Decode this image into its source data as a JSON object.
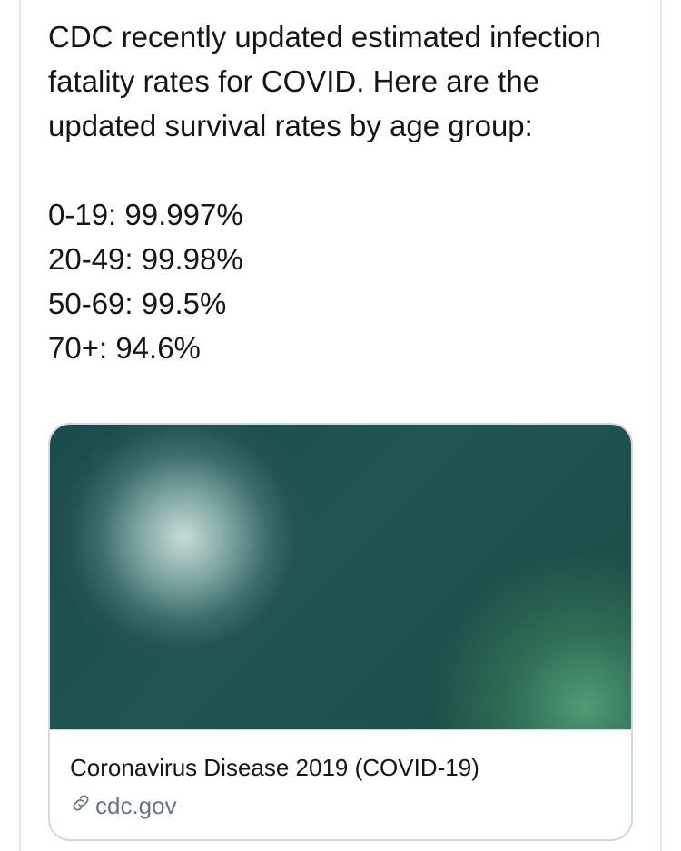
{
  "tweet": {
    "text": "CDC recently updated estimated infection fatality rates for COVID. Here are the updated survival rates by age group:\n\n0-19: 99.997%\n20-49: 99.98%\n50-69: 99.5%\n70+: 94.6%"
  },
  "link_card": {
    "title": "Coronavirus Disease 2019 (COVID-19)",
    "domain": "cdc.gov",
    "domain_icon": "link-icon",
    "image": "coronavirus-illustration"
  }
}
